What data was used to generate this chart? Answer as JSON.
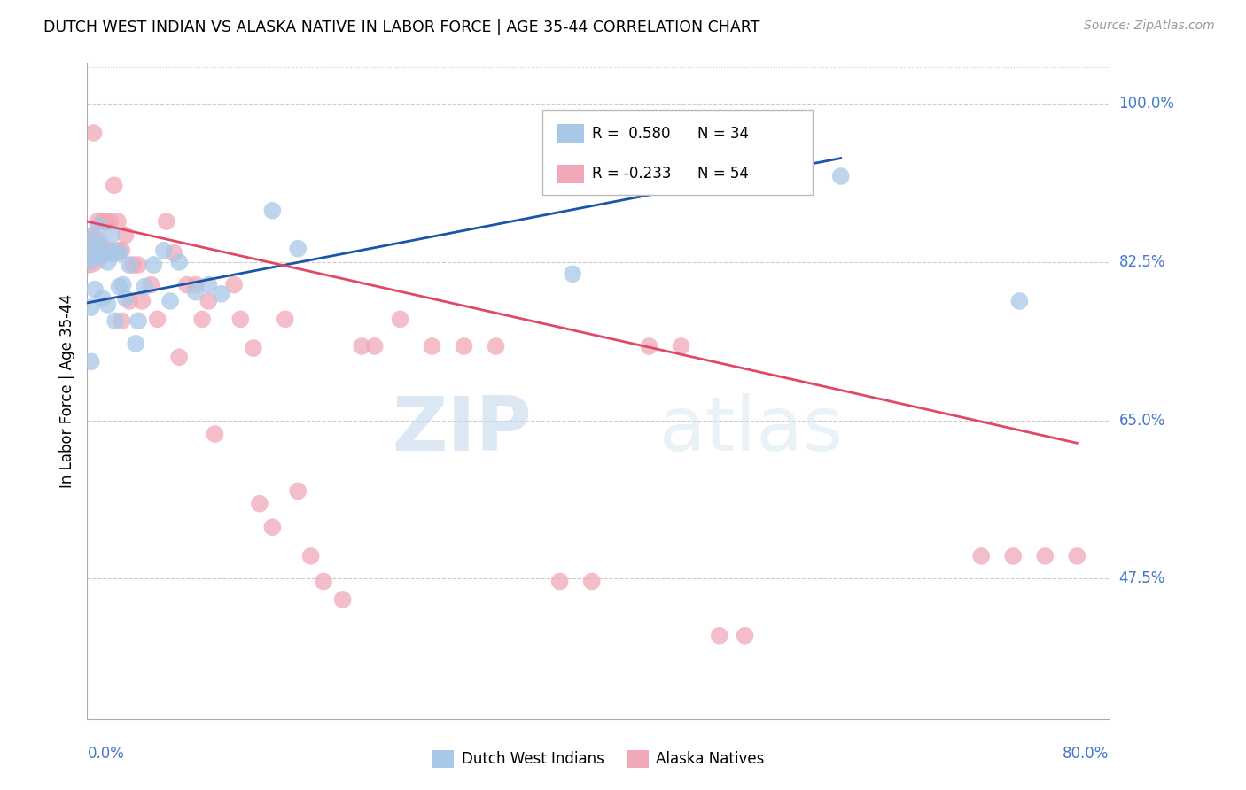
{
  "title": "DUTCH WEST INDIAN VS ALASKA NATIVE IN LABOR FORCE | AGE 35-44 CORRELATION CHART",
  "source": "Source: ZipAtlas.com",
  "ylabel": "In Labor Force | Age 35-44",
  "xmin": 0.0,
  "xmax": 0.8,
  "ymin": 0.32,
  "ymax": 1.045,
  "yticks": [
    0.475,
    0.65,
    0.825,
    1.0
  ],
  "ytick_labels": [
    "47.5%",
    "65.0%",
    "82.5%",
    "100.0%"
  ],
  "x_axis_label_left": "0.0%",
  "x_axis_label_right": "80.0%",
  "legend_r_blue": "R =  0.580",
  "legend_n_blue": "N = 34",
  "legend_r_pink": "R = -0.233",
  "legend_n_pink": "N = 54",
  "blue_color": "#a8c8e8",
  "pink_color": "#f0a8b8",
  "blue_line_color": "#1a55aa",
  "pink_line_color": "#e04868",
  "watermark_zip": "ZIP",
  "watermark_atlas": "atlas",
  "blue_scatter_x": [
    0.003,
    0.003,
    0.006,
    0.006,
    0.009,
    0.009,
    0.012,
    0.012,
    0.016,
    0.016,
    0.019,
    0.019,
    0.022,
    0.022,
    0.025,
    0.025,
    0.028,
    0.03,
    0.033,
    0.038,
    0.04,
    0.045,
    0.052,
    0.06,
    0.065,
    0.072,
    0.085,
    0.095,
    0.105,
    0.145,
    0.165,
    0.38,
    0.59,
    0.73
  ],
  "blue_scatter_y": [
    0.775,
    0.715,
    0.835,
    0.795,
    0.865,
    0.845,
    0.835,
    0.785,
    0.825,
    0.778,
    0.855,
    0.835,
    0.76,
    0.835,
    0.835,
    0.798,
    0.8,
    0.785,
    0.822,
    0.735,
    0.76,
    0.798,
    0.822,
    0.838,
    0.782,
    0.825,
    0.792,
    0.8,
    0.79,
    0.882,
    0.84,
    0.812,
    0.92,
    0.782
  ],
  "blue_large_x": [
    0.0
  ],
  "blue_large_y": [
    0.838
  ],
  "pink_scatter_x": [
    0.003,
    0.005,
    0.008,
    0.008,
    0.012,
    0.015,
    0.018,
    0.018,
    0.021,
    0.024,
    0.024,
    0.027,
    0.027,
    0.03,
    0.033,
    0.036,
    0.04,
    0.043,
    0.05,
    0.055,
    0.062,
    0.068,
    0.072,
    0.078,
    0.085,
    0.09,
    0.095,
    0.1,
    0.115,
    0.12,
    0.13,
    0.135,
    0.145,
    0.155,
    0.165,
    0.175,
    0.185,
    0.2,
    0.215,
    0.225,
    0.245,
    0.27,
    0.295,
    0.32,
    0.37,
    0.395,
    0.44,
    0.465,
    0.495,
    0.515,
    0.7,
    0.725,
    0.75,
    0.775
  ],
  "pink_scatter_y": [
    0.838,
    0.968,
    0.87,
    0.838,
    0.87,
    0.87,
    0.87,
    0.838,
    0.91,
    0.87,
    0.838,
    0.76,
    0.838,
    0.855,
    0.782,
    0.822,
    0.822,
    0.782,
    0.8,
    0.762,
    0.87,
    0.835,
    0.72,
    0.8,
    0.8,
    0.762,
    0.782,
    0.635,
    0.8,
    0.762,
    0.73,
    0.558,
    0.532,
    0.762,
    0.572,
    0.5,
    0.472,
    0.452,
    0.732,
    0.732,
    0.762,
    0.732,
    0.732,
    0.732,
    0.472,
    0.472,
    0.732,
    0.732,
    0.412,
    0.412,
    0.5,
    0.5,
    0.5,
    0.5
  ],
  "pink_large_x": [
    0.0
  ],
  "pink_large_y": [
    0.838
  ],
  "blue_trend_x0": 0.0,
  "blue_trend_x1": 0.59,
  "blue_trend_y0": 0.78,
  "blue_trend_y1": 0.94,
  "pink_trend_x0": 0.0,
  "pink_trend_x1": 0.775,
  "pink_trend_y0": 0.87,
  "pink_trend_y1": 0.625
}
